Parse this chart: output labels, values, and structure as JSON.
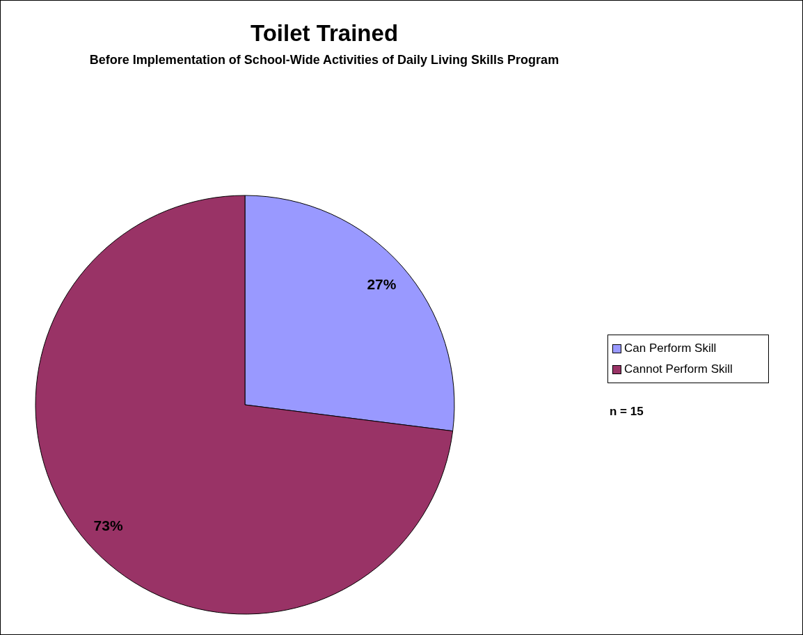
{
  "chart_data": {
    "type": "pie",
    "title": "Toilet Trained",
    "subtitle": "Before Implementation of School-Wide Activities of Daily Living Skills Program",
    "categories": [
      "Can Perform Skill",
      "Cannot Perform Skill"
    ],
    "values": [
      27,
      73
    ],
    "colors": [
      "#9999ff",
      "#993366"
    ],
    "value_labels": [
      "27%",
      "73%"
    ],
    "legend": "right",
    "annotations": [
      "n = 15"
    ]
  }
}
